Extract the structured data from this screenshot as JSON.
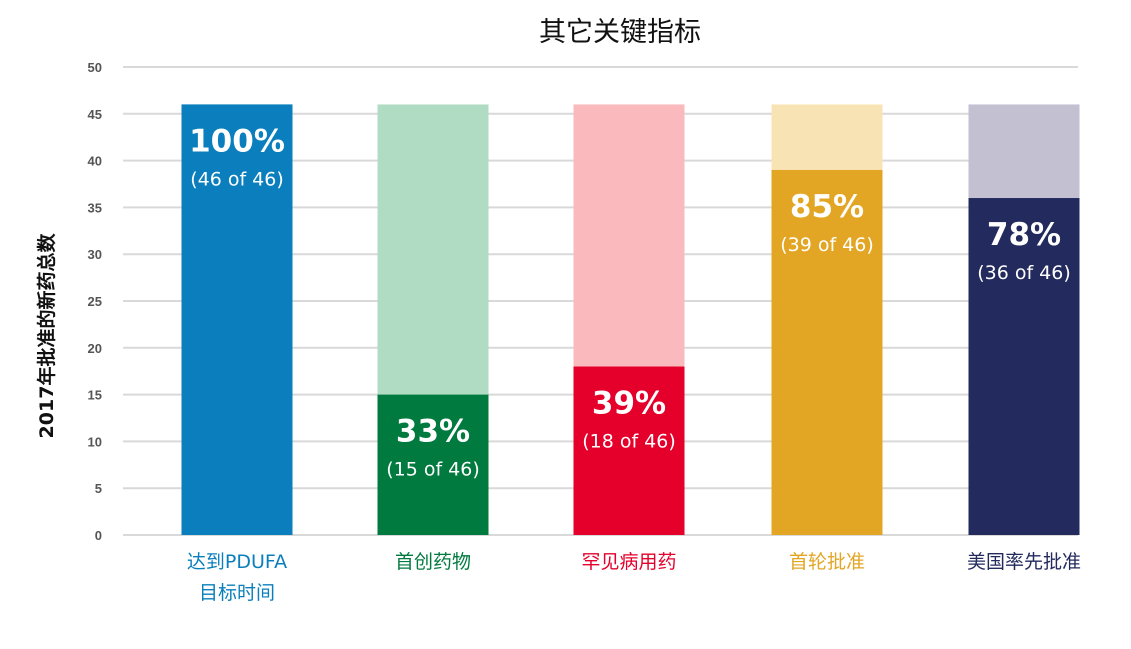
{
  "chart_data": {
    "type": "bar",
    "title": "其它关键指标",
    "ylabel": "2017年批准的新药总数",
    "xlabel": "",
    "ylim": [
      0,
      50
    ],
    "yticks": [
      0,
      5,
      10,
      15,
      20,
      25,
      30,
      35,
      40,
      45,
      50
    ],
    "grid": true,
    "total": 46,
    "categories": [
      {
        "lines": [
          "达到PDUFA",
          "目标时间"
        ],
        "value": 46,
        "percent_label": "100%",
        "count_label": "(46 of 46)",
        "color": "#0b7fbd",
        "light_color": "#0b7fbd"
      },
      {
        "lines": [
          "首创药物"
        ],
        "value": 15,
        "percent_label": "33%",
        "count_label": "(15 of 46)",
        "color": "#007a3e",
        "light_color": "#b0dcc4"
      },
      {
        "lines": [
          "罕见病用药"
        ],
        "value": 18,
        "percent_label": "39%",
        "count_label": "(18 of 46)",
        "color": "#e4002b",
        "light_color": "#f9b9bd"
      },
      {
        "lines": [
          "首轮批准"
        ],
        "value": 39,
        "percent_label": "85%",
        "count_label": "(39 of 46)",
        "color": "#e3a624",
        "light_color": "#f8e3b4"
      },
      {
        "lines": [
          "美国率先批准"
        ],
        "value": 36,
        "percent_label": "78%",
        "count_label": "(36 of 46)",
        "color": "#232a5e",
        "light_color": "#c3c1d1"
      }
    ]
  }
}
